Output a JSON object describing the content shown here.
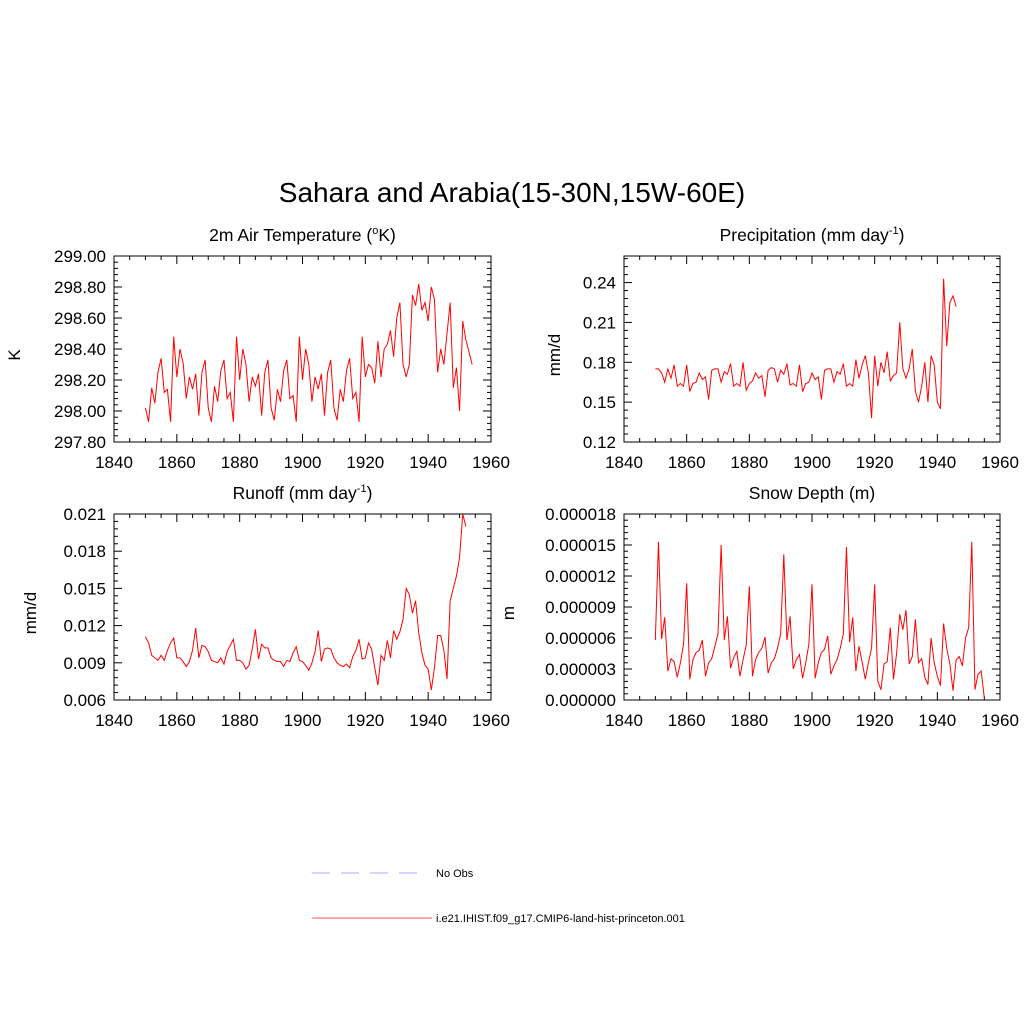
{
  "title": "Sahara and Arabia(15-30N,15W-60E)",
  "legend": {
    "items": [
      {
        "label": "No Obs",
        "color": "#aaaaff",
        "style": "dashed"
      },
      {
        "label": "i.e21.IHIST.f09_g17.CMIP6-land-hist-princeton.001",
        "color": "#ff5555",
        "style": "solid"
      }
    ]
  },
  "chart_data": [
    {
      "type": "line",
      "title": "2m Air Temperature (",
      "title_sup": "o",
      "title_after": "K)",
      "ylabel": "K",
      "xlim": [
        1840,
        1960
      ],
      "ylim": [
        297.8,
        299.0
      ],
      "xticks": [
        "1840",
        "1860",
        "1880",
        "1900",
        "1920",
        "1940",
        "1960"
      ],
      "yticks": [
        "297.80",
        "298.00",
        "298.20",
        "298.40",
        "298.60",
        "298.80",
        "299.00"
      ],
      "series": [
        {
          "color": "#ff0000",
          "x_start": 1850,
          "values": [
            298.02,
            297.93,
            298.15,
            298.05,
            298.25,
            298.34,
            298.12,
            298.14,
            297.93,
            298.48,
            298.22,
            298.4,
            298.31,
            298.08,
            298.22,
            298.14,
            298.24,
            297.97,
            298.25,
            298.33,
            298.02,
            297.93,
            298.16,
            298.06,
            298.26,
            298.33,
            298.08,
            298.12,
            297.93,
            298.48,
            298.2,
            298.4,
            298.3,
            298.06,
            298.22,
            298.16,
            298.24,
            297.97,
            298.25,
            298.33,
            298.02,
            297.94,
            298.14,
            298.06,
            298.26,
            298.33,
            298.08,
            298.1,
            297.93,
            298.48,
            298.2,
            298.4,
            298.3,
            298.06,
            298.22,
            298.14,
            298.24,
            297.97,
            298.25,
            298.33,
            298.02,
            297.94,
            298.14,
            298.06,
            298.26,
            298.34,
            298.08,
            298.12,
            297.93,
            298.48,
            298.22,
            298.3,
            298.28,
            298.18,
            298.45,
            298.22,
            298.4,
            298.43,
            298.52,
            298.35,
            298.6,
            298.7,
            298.3,
            298.22,
            298.3,
            298.75,
            298.68,
            298.82,
            298.65,
            298.7,
            298.58,
            298.8,
            298.72,
            298.25,
            298.4,
            298.3,
            298.5,
            298.7,
            298.15,
            298.28,
            298.0,
            298.58,
            298.46,
            298.38,
            298.3
          ]
        }
      ]
    },
    {
      "type": "line",
      "title": "Precipitation (mm day",
      "title_sup": "-1",
      "title_after": ")",
      "ylabel": "mm/d",
      "xlim": [
        1840,
        1960
      ],
      "ylim": [
        0.12,
        0.26
      ],
      "xticks": [
        "1840",
        "1860",
        "1880",
        "1900",
        "1920",
        "1940",
        "1960"
      ],
      "yticks": [
        "0.12",
        "0.15",
        "0.18",
        "0.21",
        "0.24"
      ],
      "series": [
        {
          "color": "#ff0000",
          "x_start": 1850,
          "values": [
            0.175,
            0.175,
            0.172,
            0.165,
            0.175,
            0.168,
            0.178,
            0.162,
            0.164,
            0.162,
            0.178,
            0.158,
            0.164,
            0.165,
            0.172,
            0.167,
            0.169,
            0.152,
            0.174,
            0.175,
            0.175,
            0.165,
            0.173,
            0.171,
            0.179,
            0.162,
            0.164,
            0.162,
            0.18,
            0.159,
            0.164,
            0.166,
            0.172,
            0.168,
            0.17,
            0.154,
            0.174,
            0.176,
            0.175,
            0.165,
            0.174,
            0.171,
            0.179,
            0.163,
            0.164,
            0.162,
            0.178,
            0.158,
            0.164,
            0.165,
            0.172,
            0.167,
            0.169,
            0.152,
            0.174,
            0.175,
            0.175,
            0.165,
            0.173,
            0.171,
            0.179,
            0.162,
            0.164,
            0.162,
            0.182,
            0.168,
            0.178,
            0.185,
            0.172,
            0.138,
            0.185,
            0.162,
            0.18,
            0.172,
            0.188,
            0.166,
            0.17,
            0.172,
            0.21,
            0.175,
            0.168,
            0.175,
            0.19,
            0.158,
            0.15,
            0.162,
            0.18,
            0.15,
            0.185,
            0.178,
            0.15,
            0.145,
            0.243,
            0.192,
            0.225,
            0.23,
            0.222
          ]
        }
      ]
    },
    {
      "type": "line",
      "title": "Runoff (mm day",
      "title_sup": "-1",
      "title_after": ")",
      "ylabel": "mm/d",
      "xlim": [
        1840,
        1960
      ],
      "ylim": [
        0.006,
        0.021
      ],
      "xticks": [
        "1840",
        "1860",
        "1880",
        "1900",
        "1920",
        "1940",
        "1960"
      ],
      "yticks": [
        "0.006",
        "0.009",
        "0.012",
        "0.015",
        "0.018",
        "0.021"
      ],
      "series": [
        {
          "color": "#ff0000",
          "x_start": 1850,
          "values": [
            0.0111,
            0.0106,
            0.0096,
            0.0094,
            0.0092,
            0.0096,
            0.0092,
            0.01,
            0.0106,
            0.011,
            0.0094,
            0.0094,
            0.0091,
            0.0087,
            0.0091,
            0.01,
            0.0118,
            0.0094,
            0.0104,
            0.0103,
            0.0099,
            0.0092,
            0.0091,
            0.009,
            0.0094,
            0.0089,
            0.0099,
            0.0104,
            0.0109,
            0.0092,
            0.0092,
            0.009,
            0.0085,
            0.0088,
            0.0101,
            0.0117,
            0.0093,
            0.0105,
            0.0102,
            0.0102,
            0.0094,
            0.0092,
            0.0091,
            0.0091,
            0.0087,
            0.0092,
            0.0091,
            0.0098,
            0.0103,
            0.0092,
            0.0091,
            0.0088,
            0.0084,
            0.009,
            0.0099,
            0.0116,
            0.0091,
            0.0101,
            0.0102,
            0.0101,
            0.0094,
            0.009,
            0.0088,
            0.0087,
            0.0089,
            0.0086,
            0.0095,
            0.01,
            0.0109,
            0.0093,
            0.0094,
            0.0106,
            0.0101,
            0.0086,
            0.0072,
            0.0096,
            0.0092,
            0.0108,
            0.0094,
            0.0116,
            0.0109,
            0.0115,
            0.0125,
            0.015,
            0.0145,
            0.013,
            0.014,
            0.0114,
            0.0098,
            0.0088,
            0.0085,
            0.0068,
            0.0086,
            0.0112,
            0.0112,
            0.01,
            0.0077,
            0.014,
            0.015,
            0.016,
            0.0175,
            0.021,
            0.02
          ]
        }
      ]
    },
    {
      "type": "line",
      "title": "Snow Depth (m)",
      "title_sup": "",
      "title_after": "",
      "ylabel": "m",
      "xlim": [
        1840,
        1960
      ],
      "ylim": [
        0.0,
        1.8e-05
      ],
      "xticks": [
        "1840",
        "1860",
        "1880",
        "1900",
        "1920",
        "1940",
        "1960"
      ],
      "yticks": [
        "0.000000",
        "0.000003",
        "0.000006",
        "0.000009",
        "0.000012",
        "0.000015",
        "0.000018"
      ],
      "series": [
        {
          "color": "#ff0000",
          "x_start": 1850,
          "values": [
            5.8e-06,
            1.53e-05,
            5.9e-06,
            8e-06,
            2.8e-06,
            4e-06,
            3.7e-06,
            2.2e-06,
            3.6e-06,
            5.4e-06,
            1.13e-05,
            2e-06,
            3.9e-06,
            4.6e-06,
            4.8e-06,
            5.8e-06,
            2.3e-06,
            3.6e-06,
            4e-06,
            5.2e-06,
            6.4e-06,
            1.5e-05,
            5.8e-06,
            8.1e-06,
            3.1e-06,
            4.1e-06,
            4.7e-06,
            2.3e-06,
            3.9e-06,
            5.3e-06,
            1.1e-05,
            2.3e-06,
            3.9e-06,
            4.6e-06,
            5e-06,
            6.1e-06,
            2.6e-06,
            3.6e-06,
            4e-06,
            5e-06,
            6.4e-06,
            1.41e-05,
            5.8e-06,
            8.1e-06,
            3e-06,
            3.9e-06,
            4.4e-06,
            2.1e-06,
            3.6e-06,
            5.4e-06,
            1.12e-05,
            2.1e-06,
            3.6e-06,
            4.6e-06,
            4.9e-06,
            6.2e-06,
            2.5e-06,
            3.3e-06,
            3.9e-06,
            5e-06,
            6.4e-06,
            1.48e-05,
            5.6e-06,
            8e-06,
            2.8e-06,
            5.2e-06,
            3.7e-06,
            2e-06,
            3.6e-06,
            5e-06,
            1.12e-05,
            1.8e-06,
            1e-06,
            3.5e-06,
            3.7e-06,
            7e-06,
            2e-06,
            4.5e-06,
            8.3e-06,
            6.8e-06,
            8.7e-06,
            3.5e-06,
            4.2e-06,
            7.8e-06,
            3.6e-06,
            4e-06,
            2.2e-06,
            1.5e-06,
            6e-06,
            3.6e-06,
            2.3e-06,
            1.4e-06,
            7.4e-06,
            5e-06,
            3.5e-06,
            9e-07,
            3.9e-06,
            4.2e-06,
            3.3e-06,
            6e-06,
            7e-06,
            1.53e-05,
            1e-06,
            2.5e-06,
            2.8e-06,
            2e-07
          ]
        }
      ]
    }
  ]
}
